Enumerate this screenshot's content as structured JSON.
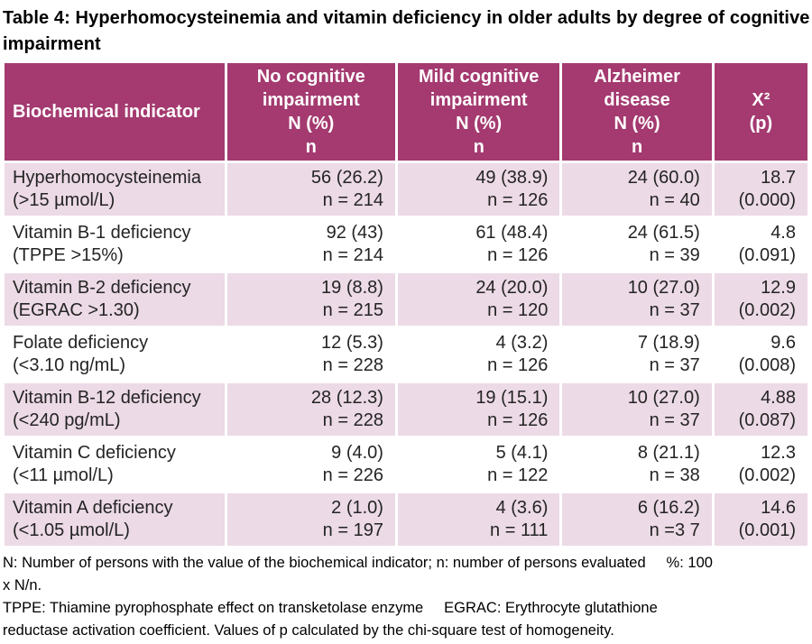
{
  "title": "Table 4: Hyperhomocysteinemia and vitamin deficiency in older adults by degree of cognitive impairment",
  "colors": {
    "header_bg": "#a43a70",
    "row_alt_bg": "#ecdae6",
    "row_bg": "#ffffff",
    "header_text": "#ffffff",
    "cell_text": "#242424"
  },
  "table": {
    "columns": [
      {
        "id": "biochemical_indicator",
        "lines": [
          "Biochemical indicator"
        ]
      },
      {
        "id": "no_cognitive_impairment",
        "lines": [
          "No cognitive",
          "impairment",
          "N (%)",
          "n"
        ]
      },
      {
        "id": "mild_cognitive_impairment",
        "lines": [
          "Mild cognitive",
          "impairment",
          "N (%)",
          "n"
        ]
      },
      {
        "id": "alzheimer_disease",
        "lines": [
          "Alzheimer",
          "disease",
          "N (%)",
          "n"
        ]
      },
      {
        "id": "chi_square",
        "lines": [
          "X²",
          "(p)"
        ]
      }
    ],
    "rows": [
      {
        "cells": [
          [
            "Hyperhomocysteinemia",
            "(>15 µmol/L)"
          ],
          [
            "56 (26.2)",
            "n = 214"
          ],
          [
            "49 (38.9)",
            "n = 126"
          ],
          [
            "24 (60.0)",
            "n = 40"
          ],
          [
            "18.7",
            "(0.000)"
          ]
        ]
      },
      {
        "cells": [
          [
            "Vitamin B-1 deficiency",
            "(TPPE >15%)"
          ],
          [
            "92 (43)",
            "n = 214"
          ],
          [
            "61 (48.4)",
            "n = 126"
          ],
          [
            "24 (61.5)",
            "n = 39"
          ],
          [
            "4.8",
            "(0.091)"
          ]
        ]
      },
      {
        "cells": [
          [
            "Vitamin B-2 deficiency",
            "(EGRAC >1.30)"
          ],
          [
            "19 (8.8)",
            "n = 215"
          ],
          [
            "24 (20.0)",
            "n = 120"
          ],
          [
            "10 (27.0)",
            "n = 37"
          ],
          [
            "12.9",
            "(0.002)"
          ]
        ]
      },
      {
        "cells": [
          [
            "Folate deficiency",
            "(<3.10 ng/mL)"
          ],
          [
            "12 (5.3)",
            "n = 228"
          ],
          [
            "4 (3.2)",
            "n = 126"
          ],
          [
            "7 (18.9)",
            "n = 37"
          ],
          [
            "9.6",
            "(0.008)"
          ]
        ]
      },
      {
        "cells": [
          [
            "Vitamin B-12 deficiency",
            "(<240 pg/mL)"
          ],
          [
            "28 (12.3)",
            "n = 228"
          ],
          [
            "19 (15.1)",
            "n = 126"
          ],
          [
            "10 (27.0)",
            "n = 37"
          ],
          [
            "4.88",
            "(0.087)"
          ]
        ]
      },
      {
        "cells": [
          [
            "Vitamin C deficiency",
            "(<11 µmol/L)"
          ],
          [
            "9 (4.0)",
            "n = 226"
          ],
          [
            "5 (4.1)",
            "n = 122"
          ],
          [
            "8 (21.1)",
            "n = 38"
          ],
          [
            "12.3",
            "(0.002)"
          ]
        ]
      },
      {
        "cells": [
          [
            "Vitamin A deficiency",
            "(<1.05 µmol/L)"
          ],
          [
            "2 (1.0)",
            "n = 197"
          ],
          [
            "4 (3.6)",
            "n = 111"
          ],
          [
            "6 (16.2)",
            "n =3 7"
          ],
          [
            "14.6",
            "(0.001)"
          ]
        ]
      }
    ]
  },
  "footnotes": [
    "N: Number of persons with the value of the biochemical indicator; n: number of persons evaluated     %: 100",
    "x N/n.",
    "TPPE: Thiamine pyrophosphate effect on transketolase enzyme     EGRAC: Erythrocyte glutathione",
    "reductase activation coefficient. Values of p calculated by the chi-square test of homogeneity."
  ]
}
